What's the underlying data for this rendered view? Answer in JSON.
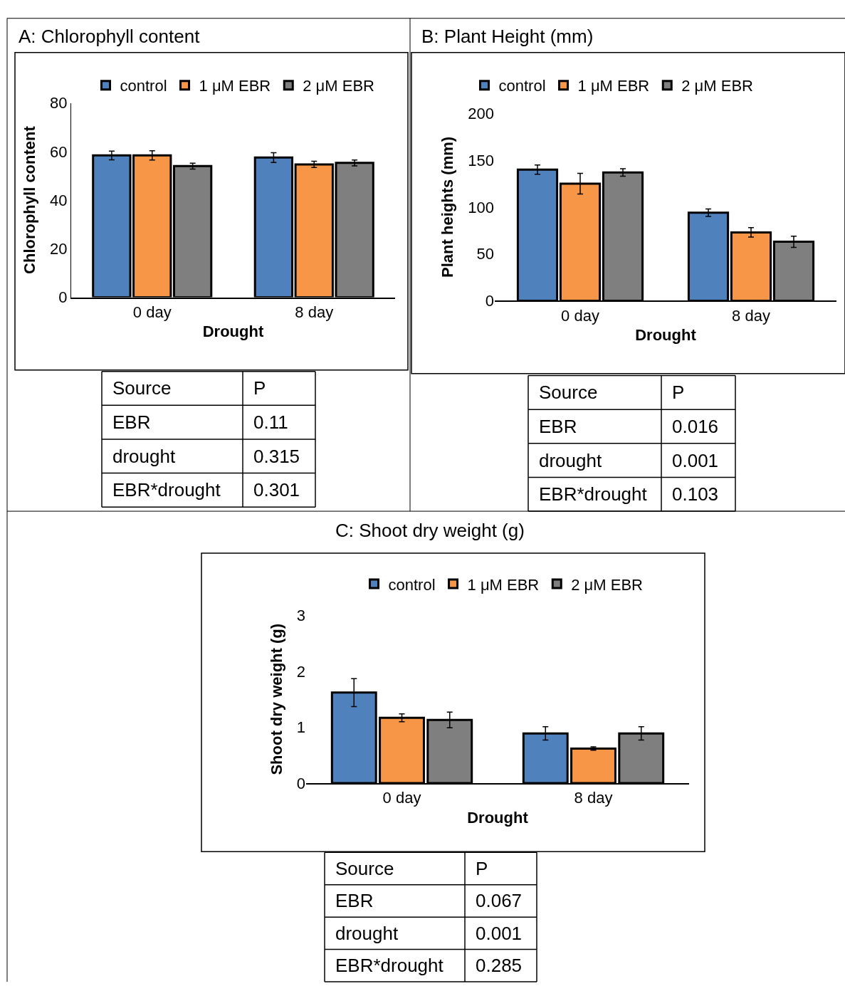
{
  "chart_data": [
    {
      "type": "bar",
      "title": "A: Chlorophyll content",
      "xlabel": "Drought",
      "ylabel": "Chlorophyll content",
      "categories": [
        "0 day",
        "8 day"
      ],
      "series": [
        {
          "name": "control",
          "color": "#4f81bd",
          "values": [
            58.4,
            57.5
          ],
          "errors": [
            1.8,
            2
          ]
        },
        {
          "name": "1 μM EBR",
          "color": "#f79646",
          "values": [
            58.4,
            54.7
          ],
          "errors": [
            1.9,
            1.3
          ]
        },
        {
          "name": "2 μM EBR",
          "color": "#7f7f7f",
          "values": [
            54,
            55.3
          ],
          "errors": [
            1.2,
            1.2
          ]
        }
      ],
      "ylim": [
        0,
        80
      ],
      "yticks": [
        0,
        20,
        40,
        60,
        80
      ],
      "legend": "top",
      "annotations": [
        "Source",
        "P",
        "EBR",
        "0.11",
        "drought",
        "0.315",
        "EBR*drought",
        "0.301"
      ]
    },
    {
      "type": "bar",
      "title": "B: Plant Height (mm)",
      "xlabel": "Drought",
      "ylabel": "Plant heights (mm)",
      "categories": [
        "0 day",
        "8 day"
      ],
      "series": [
        {
          "name": "control",
          "color": "#4f81bd",
          "values": [
            140,
            94
          ],
          "errors": [
            5,
            4
          ]
        },
        {
          "name": "1 μM EBR",
          "color": "#f79646",
          "values": [
            125,
            73
          ],
          "errors": [
            11,
            5
          ]
        },
        {
          "name": "2 μM EBR",
          "color": "#7f7f7f",
          "values": [
            137,
            63
          ],
          "errors": [
            4,
            6
          ]
        }
      ],
      "ylim": [
        0,
        200
      ],
      "yticks": [
        0,
        50,
        100,
        150,
        200
      ],
      "legend": "top",
      "annotations": [
        "Source",
        "P",
        "EBR",
        "0.016",
        "drought",
        "0.001",
        "EBR*drought",
        "0.103"
      ]
    },
    {
      "type": "bar",
      "title": "C: Shoot dry weight (g)",
      "xlabel": "Drought",
      "ylabel": "Shoot dry weight (g)",
      "categories": [
        "0 day",
        "8 day"
      ],
      "series": [
        {
          "name": "control",
          "color": "#4f81bd",
          "values": [
            1.62,
            0.89
          ],
          "errors": [
            0.25,
            0.12
          ]
        },
        {
          "name": "1 μM EBR",
          "color": "#f79646",
          "values": [
            1.17,
            0.62
          ],
          "errors": [
            0.07,
            0.03
          ]
        },
        {
          "name": "2 μM EBR",
          "color": "#7f7f7f",
          "values": [
            1.13,
            0.89
          ],
          "errors": [
            0.14,
            0.12
          ]
        }
      ],
      "ylim": [
        0,
        3
      ],
      "yticks": [
        0,
        1,
        2,
        3
      ],
      "legend": "top",
      "annotations": [
        "Source",
        "P",
        "EBR",
        "0.067",
        "drought",
        "0.001",
        "EBR*drought",
        "0.285"
      ]
    }
  ]
}
